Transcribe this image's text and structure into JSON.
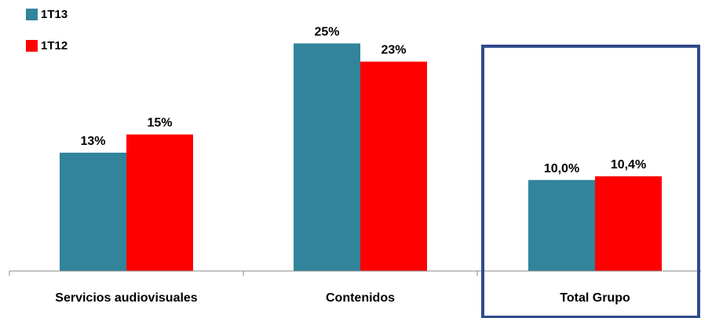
{
  "chart_data": {
    "type": "bar",
    "categories": [
      "Servicios audiovisuales",
      "Contenidos",
      "Total Grupo"
    ],
    "series": [
      {
        "name": "1T13",
        "color": "#31849B",
        "values": [
          13,
          25,
          10.0
        ],
        "labels": [
          "13%",
          "25%",
          "10,0%"
        ]
      },
      {
        "name": "1T12",
        "color": "#FF0000",
        "values": [
          15,
          23,
          10.4
        ],
        "labels": [
          "15%",
          "23%",
          "10,4%"
        ]
      }
    ],
    "ylim": [
      0,
      26.5
    ],
    "legend_position": "top-left",
    "highlight_category": "Total Grupo",
    "highlight_color": "#2E4B8C"
  }
}
